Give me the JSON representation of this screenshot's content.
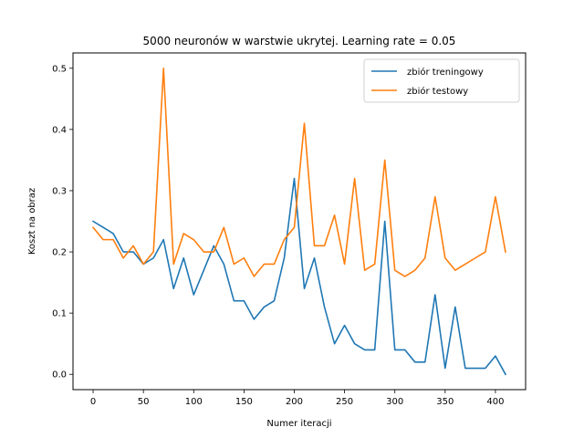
{
  "chart_data": {
    "type": "line",
    "title": "5000 neuronów w warstwie ukrytej. Learning rate = 0.05",
    "xlabel": "Numer iteracji",
    "ylabel": "Koszt na obraz",
    "xlim": [
      -20,
      430
    ],
    "ylim": [
      -0.025,
      0.525
    ],
    "xticks": [
      0,
      50,
      100,
      150,
      200,
      250,
      300,
      350,
      400
    ],
    "yticks": [
      0.0,
      0.1,
      0.2,
      0.3,
      0.4,
      0.5
    ],
    "xtick_labels": [
      "0",
      "50",
      "100",
      "150",
      "200",
      "250",
      "300",
      "350",
      "400"
    ],
    "ytick_labels": [
      "0.0",
      "0.1",
      "0.2",
      "0.3",
      "0.4",
      "0.5"
    ],
    "grid": false,
    "legend_position": "upper-right",
    "x": [
      0,
      10,
      20,
      30,
      40,
      50,
      60,
      70,
      80,
      90,
      100,
      110,
      120,
      130,
      140,
      150,
      160,
      170,
      180,
      190,
      200,
      210,
      220,
      230,
      240,
      250,
      260,
      270,
      280,
      290,
      300,
      310,
      320,
      330,
      340,
      350,
      360,
      370,
      380,
      390,
      400,
      410
    ],
    "series": [
      {
        "name": "zbiór treningowy",
        "color": "#1f77b4",
        "values": [
          0.25,
          0.24,
          0.23,
          0.2,
          0.2,
          0.18,
          0.19,
          0.22,
          0.14,
          0.19,
          0.13,
          0.17,
          0.21,
          0.18,
          0.12,
          0.12,
          0.09,
          0.11,
          0.12,
          0.19,
          0.32,
          0.14,
          0.19,
          0.11,
          0.05,
          0.08,
          0.05,
          0.04,
          0.04,
          0.25,
          0.04,
          0.04,
          0.02,
          0.02,
          0.13,
          0.01,
          0.11,
          0.01,
          0.01,
          0.01,
          0.03,
          0.0
        ]
      },
      {
        "name": "zbiór testowy",
        "color": "#ff7f0e",
        "values": [
          0.24,
          0.22,
          0.22,
          0.19,
          0.21,
          0.18,
          0.2,
          0.5,
          0.18,
          0.23,
          0.22,
          0.2,
          0.2,
          0.24,
          0.18,
          0.19,
          0.16,
          0.18,
          0.18,
          0.22,
          0.24,
          0.41,
          0.21,
          0.21,
          0.26,
          0.18,
          0.32,
          0.17,
          0.18,
          0.35,
          0.17,
          0.16,
          0.17,
          0.19,
          0.29,
          0.19,
          0.17,
          0.18,
          0.19,
          0.2,
          0.29,
          0.2
        ]
      }
    ]
  }
}
